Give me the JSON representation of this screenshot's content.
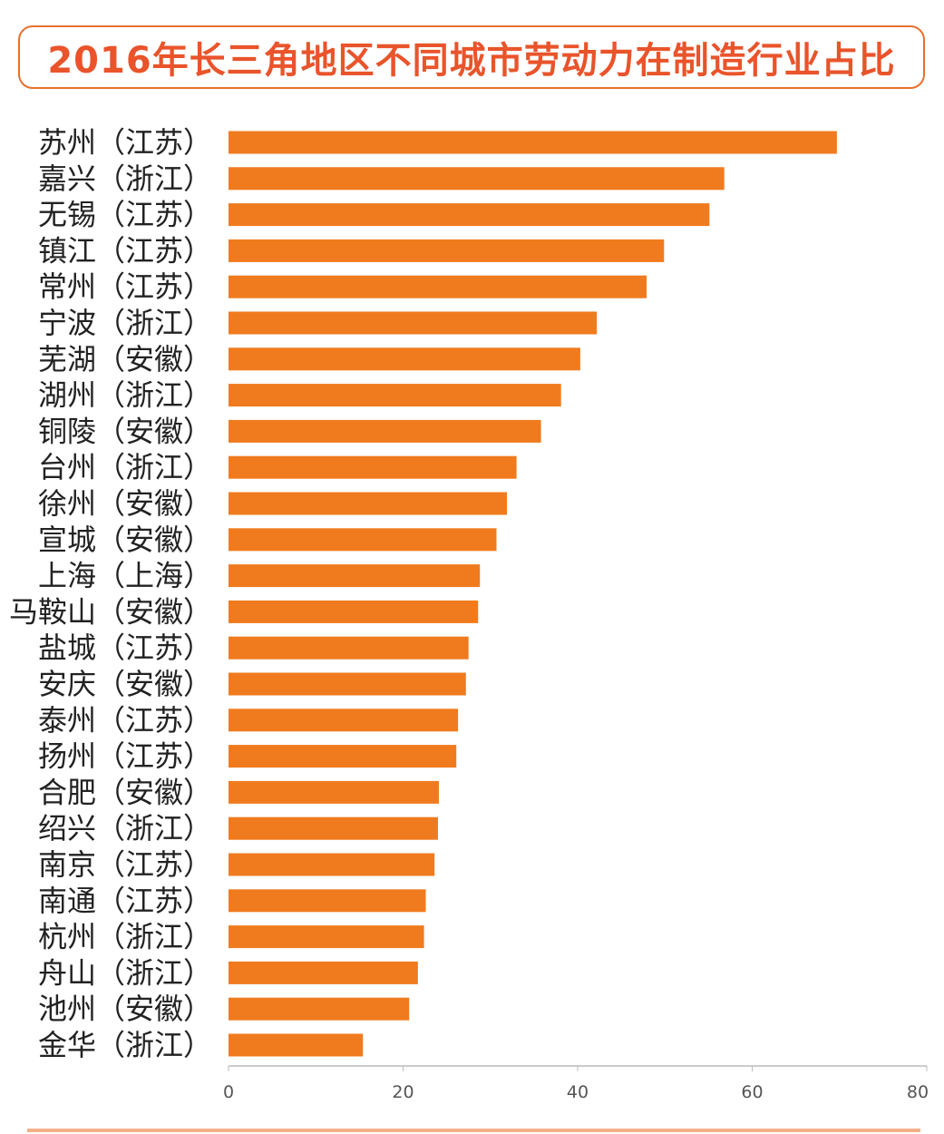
{
  "title": "2016年长三角地区不同城市劳动力在制造行业占比",
  "colors": {
    "bar": "#f07b1e",
    "title": "#e9542b",
    "border": "#e9702e"
  },
  "chart_data": {
    "type": "bar",
    "orientation": "horizontal",
    "title": "2016年长三角地区不同城市劳动力在制造行业占比",
    "categories": [
      "苏州（江苏）",
      "嘉兴（浙江）",
      "无锡（江苏）",
      "镇江（江苏）",
      "常州（江苏）",
      "宁波（浙江）",
      "芜湖（安徽）",
      "湖州（浙江）",
      "铜陵（安徽）",
      "台州（浙江）",
      "徐州（安徽）",
      "宣城（安徽）",
      "上海（上海）",
      "马鞍山（安徽）",
      "盐城（江苏）",
      "安庆（安徽）",
      "泰州（江苏）",
      "扬州（江苏）",
      "合肥（安徽）",
      "绍兴（浙江）",
      "南京（江苏）",
      "南通（江苏）",
      "杭州（浙江）",
      "舟山（浙江）",
      "池州（安徽）",
      "金华（浙江）"
    ],
    "values": [
      69.7,
      56.8,
      55.1,
      49.9,
      47.9,
      42.2,
      40.3,
      38.1,
      35.8,
      33.0,
      31.9,
      30.7,
      28.8,
      28.6,
      27.5,
      27.2,
      26.3,
      26.1,
      24.1,
      24.0,
      23.6,
      22.6,
      22.4,
      21.7,
      20.7,
      15.4
    ],
    "xlim": [
      0,
      80
    ],
    "xticks": [
      0,
      20,
      40,
      60,
      80
    ],
    "grid": false
  }
}
